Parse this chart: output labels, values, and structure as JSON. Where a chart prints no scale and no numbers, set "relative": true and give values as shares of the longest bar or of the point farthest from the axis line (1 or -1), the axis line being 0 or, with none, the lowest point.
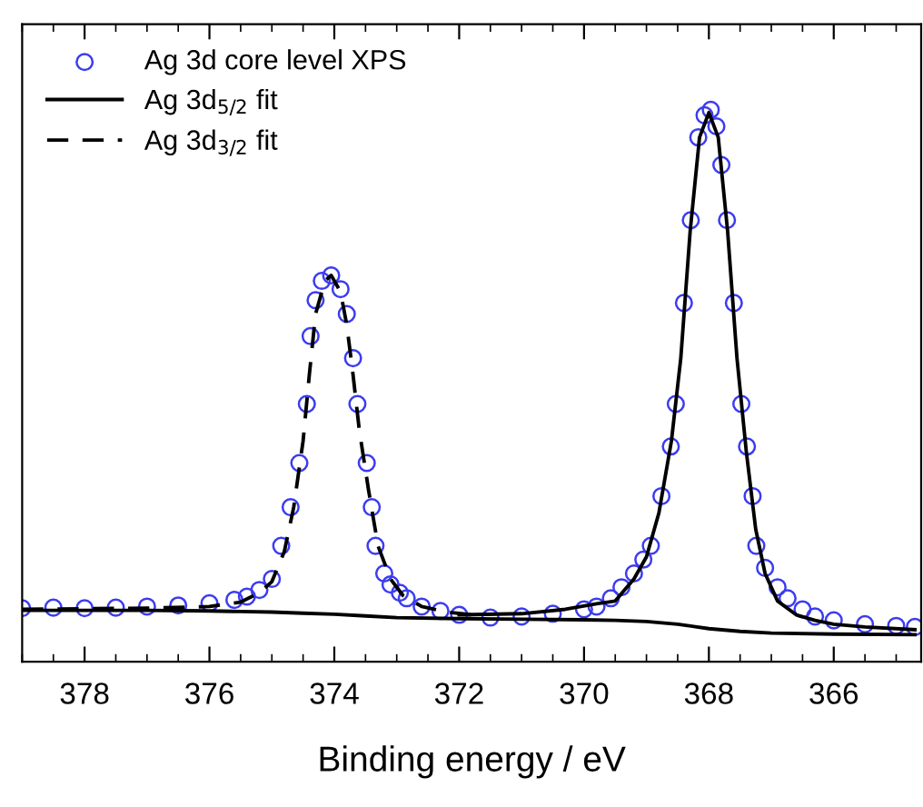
{
  "chart_data": {
    "type": "line",
    "relative": true,
    "xlabel": "Binding energy / eV",
    "xlim": [
      379,
      364.6
    ],
    "xticks": [
      378,
      376,
      374,
      372,
      370,
      368,
      366
    ],
    "grid": false,
    "legend": "top left",
    "series": [
      {
        "name": "Ag 3d core level XPS",
        "type": "scatter",
        "marker": "circle",
        "color": "#3c3cf0",
        "x": [
          379.0,
          378.5,
          378.0,
          377.5,
          377.0,
          376.5,
          376.0,
          375.6,
          375.4,
          375.2,
          375.0,
          374.85,
          374.7,
          374.56,
          374.44,
          374.38,
          374.3,
          374.2,
          374.05,
          373.9,
          373.8,
          373.7,
          373.63,
          373.48,
          373.4,
          373.34,
          373.2,
          373.1,
          372.95,
          372.84,
          372.6,
          372.3,
          372.0,
          371.5,
          371.0,
          370.5,
          370.0,
          369.8,
          369.57,
          369.4,
          369.2,
          369.05,
          368.93,
          368.76,
          368.61,
          368.53,
          368.4,
          368.29,
          368.17,
          368.07,
          367.97,
          367.88,
          367.8,
          367.71,
          367.6,
          367.48,
          367.39,
          367.3,
          367.24,
          367.1,
          366.9,
          366.74,
          366.5,
          366.3,
          366.0,
          365.5,
          365.0,
          364.7
        ],
        "values": [
          0.097,
          0.098,
          0.097,
          0.098,
          0.1,
          0.102,
          0.106,
          0.112,
          0.118,
          0.13,
          0.15,
          0.21,
          0.28,
          0.36,
          0.467,
          0.59,
          0.655,
          0.69,
          0.7,
          0.675,
          0.63,
          0.55,
          0.467,
          0.36,
          0.28,
          0.21,
          0.16,
          0.14,
          0.125,
          0.115,
          0.1,
          0.092,
          0.085,
          0.08,
          0.082,
          0.087,
          0.095,
          0.1,
          0.115,
          0.135,
          0.16,
          0.185,
          0.21,
          0.3,
          0.39,
          0.467,
          0.65,
          0.8,
          0.95,
          0.99,
          1.0,
          0.97,
          0.9,
          0.8,
          0.65,
          0.467,
          0.39,
          0.3,
          0.21,
          0.17,
          0.135,
          0.115,
          0.095,
          0.082,
          0.075,
          0.068,
          0.065,
          0.063
        ]
      },
      {
        "name": "Ag 3d$_{5/2}$ fit",
        "line_style": "solid",
        "color": "#000000",
        "x": [
          372.0,
          371.0,
          370.3,
          369.8,
          369.5,
          369.2,
          369.0,
          368.8,
          368.6,
          368.45,
          368.3,
          368.15,
          368.0,
          367.85,
          367.7,
          367.55,
          367.4,
          367.25,
          367.1,
          366.9,
          366.6,
          366.3,
          366.0,
          365.5,
          364.7
        ],
        "values": [
          0.085,
          0.087,
          0.095,
          0.105,
          0.11,
          0.15,
          0.19,
          0.27,
          0.4,
          0.55,
          0.78,
          0.95,
          0.995,
          0.95,
          0.78,
          0.55,
          0.38,
          0.24,
          0.16,
          0.11,
          0.085,
          0.075,
          0.068,
          0.063,
          0.058
        ]
      },
      {
        "name": "Ag 3d$_{3/2}$ fit",
        "line_style": "dashed",
        "color": "#000000",
        "x": [
          379.0,
          377.0,
          376.0,
          375.5,
          375.2,
          375.0,
          374.8,
          374.65,
          374.5,
          374.4,
          374.3,
          374.15,
          374.05,
          373.9,
          373.8,
          373.7,
          373.6,
          373.45,
          373.3,
          373.1,
          372.9,
          372.6,
          372.2,
          371.8
        ],
        "values": [
          0.095,
          0.097,
          0.1,
          0.108,
          0.125,
          0.145,
          0.2,
          0.28,
          0.4,
          0.52,
          0.63,
          0.69,
          0.7,
          0.67,
          0.61,
          0.52,
          0.42,
          0.31,
          0.21,
          0.15,
          0.12,
          0.1,
          0.09,
          0.085
        ]
      },
      {
        "line_style": "solid",
        "color": "#000000",
        "x": [
          379.0,
          377.0,
          376.0,
          375.5,
          375.0,
          374.5,
          374.0,
          373.5,
          373.0,
          372.0,
          371.0,
          370.0,
          369.5,
          369.0,
          368.5,
          368.0,
          367.5,
          367.0,
          366.0,
          364.7
        ],
        "values": [
          0.093,
          0.093,
          0.092,
          0.091,
          0.09,
          0.088,
          0.086,
          0.083,
          0.08,
          0.078,
          0.077,
          0.076,
          0.075,
          0.073,
          0.068,
          0.06,
          0.055,
          0.052,
          0.05,
          0.049
        ]
      }
    ]
  }
}
